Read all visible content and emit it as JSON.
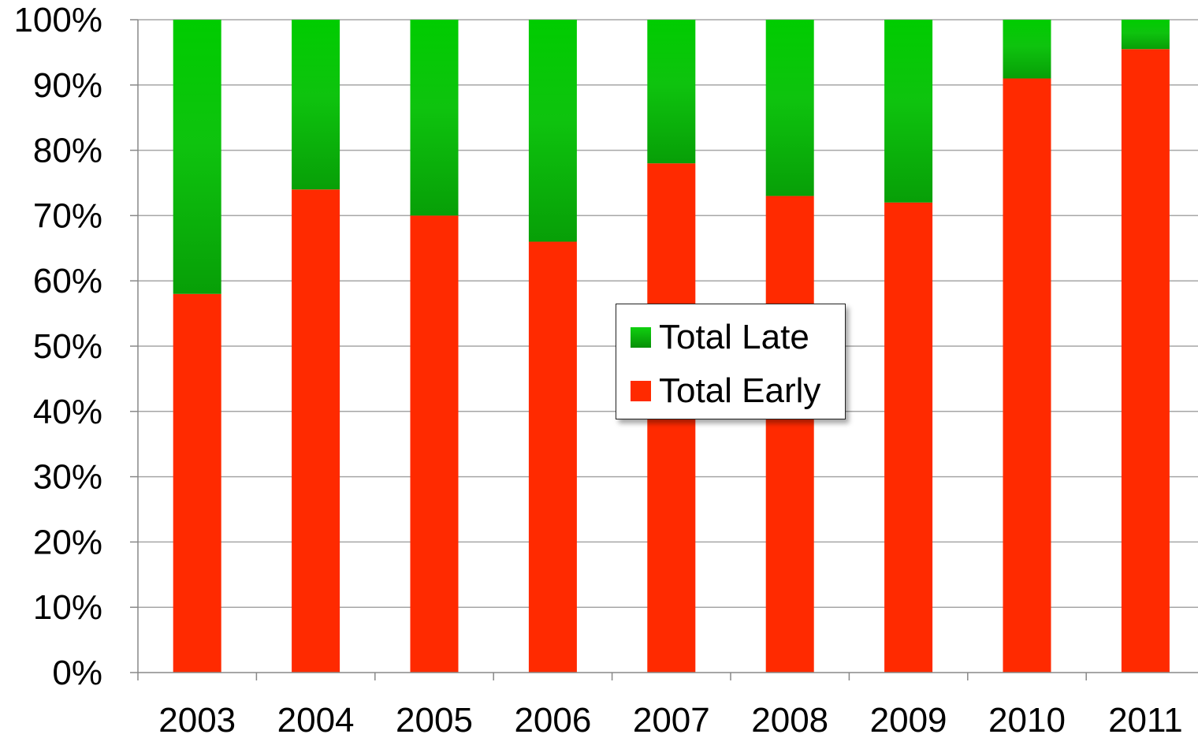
{
  "chart_data": {
    "type": "bar",
    "stacked": true,
    "categories": [
      "2003",
      "2004",
      "2005",
      "2006",
      "2007",
      "2008",
      "2009",
      "2010",
      "2011"
    ],
    "series": [
      {
        "name": "Total Early",
        "color": "#ff2a00",
        "values": [
          58,
          74,
          70,
          66,
          78,
          73,
          72,
          91,
          95.5
        ]
      },
      {
        "name": "Total Late",
        "color": "#0fb80f",
        "values": [
          42,
          26,
          30,
          34,
          22,
          27,
          28,
          9,
          4.5
        ]
      }
    ],
    "y_ticks": [
      "0%",
      "10%",
      "20%",
      "30%",
      "40%",
      "50%",
      "60%",
      "70%",
      "80%",
      "90%",
      "100%"
    ],
    "ylim": [
      0,
      100
    ],
    "y_unit": "%",
    "grid": true,
    "legend": {
      "placement": "center",
      "items": [
        {
          "label": "Total Late",
          "color": "#0fb80f"
        },
        {
          "label": "Total Early",
          "color": "#ff2a00"
        }
      ]
    }
  }
}
